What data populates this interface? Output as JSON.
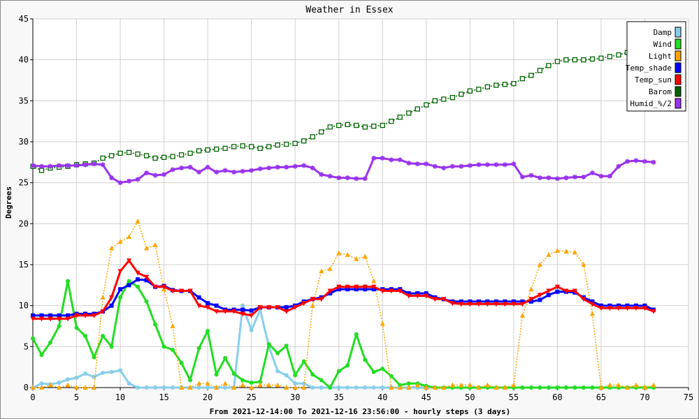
{
  "chart_data": {
    "type": "line",
    "title": "Weather in Essex",
    "xlabel": "From 2021-12-14:00 To 2021-12-16 23:56:00 - hourly steps (3 days)",
    "ylabel": "Degrees",
    "xlim": [
      0,
      75
    ],
    "ylim": [
      0,
      45
    ],
    "x_ticks": [
      0,
      5,
      10,
      15,
      20,
      25,
      30,
      35,
      40,
      45,
      50,
      55,
      60,
      65,
      70,
      75
    ],
    "y_ticks": [
      0,
      5,
      10,
      15,
      20,
      25,
      30,
      35,
      40,
      45
    ],
    "legend_position": "top-right",
    "series": [
      {
        "name": "Damp",
        "color": "#87ceeb",
        "marker": "circle",
        "dashed": false,
        "values": [
          0.0,
          0.5,
          0.4,
          0.6,
          1.0,
          1.2,
          1.7,
          1.3,
          1.8,
          1.9,
          2.1,
          0.5,
          0.0,
          0.0,
          0.0,
          0.0,
          0.0,
          0.0,
          0.0,
          0.0,
          0.0,
          0.0,
          0.0,
          0.0,
          10.0,
          7.0,
          9.5,
          5.0,
          2.0,
          1.5,
          0.5,
          0.5,
          0.0,
          0.0,
          0.0,
          0.0,
          0.0,
          0.0,
          0.0,
          0.0,
          0.0,
          0.0,
          0.0,
          0.0,
          0.0,
          0.0,
          0.0,
          0.0,
          0.0,
          0.0,
          0.0,
          0.0,
          0.0,
          0.0,
          0.0,
          0.0,
          0.0,
          0.0,
          0.0,
          0.0,
          0.0,
          0.0,
          0.0,
          0.0,
          0.0,
          0.0,
          0.0,
          0.0,
          0.0,
          0.0,
          0.0,
          0.0
        ]
      },
      {
        "name": "Wind",
        "color": "#22dd22",
        "marker": "circle",
        "dashed": false,
        "values": [
          6.0,
          4.0,
          5.5,
          7.5,
          13.0,
          7.3,
          6.3,
          3.7,
          6.3,
          5.0,
          11.0,
          13.0,
          12.3,
          10.5,
          7.7,
          5.0,
          4.6,
          3.0,
          0.9,
          4.8,
          6.9,
          1.6,
          3.6,
          1.7,
          0.9,
          0.6,
          0.7,
          5.3,
          4.2,
          5.1,
          1.5,
          3.2,
          1.6,
          0.9,
          0.0,
          2.0,
          2.7,
          6.5,
          3.4,
          1.9,
          2.3,
          1.4,
          0.3,
          0.5,
          0.5,
          0.2,
          0.0,
          0.0,
          0.0,
          0.0,
          0.0,
          0.0,
          0.0,
          0.0,
          0.0,
          0.0,
          0.0,
          0.0,
          0.0,
          0.0,
          0.0,
          0.0,
          0.0,
          0.0,
          0.0,
          0.0,
          0.0,
          0.0,
          0.0,
          0.0,
          0.0,
          0.0
        ]
      },
      {
        "name": "Light",
        "color": "#ffa500",
        "marker": "triangle",
        "dashed": true,
        "values": [
          0.0,
          0.0,
          0.3,
          0.0,
          0.3,
          0.0,
          0.0,
          0.0,
          11.0,
          17.0,
          17.8,
          18.4,
          20.3,
          17.0,
          17.4,
          12.0,
          7.5,
          0.0,
          0.0,
          0.5,
          0.5,
          0.0,
          0.5,
          0.0,
          0.3,
          0.0,
          0.3,
          0.3,
          0.3,
          0.0,
          0.0,
          0.0,
          10.0,
          14.2,
          14.5,
          16.4,
          16.2,
          15.7,
          16.0,
          13.0,
          7.8,
          0.0,
          0.0,
          0.0,
          0.3,
          0.0,
          0.0,
          0.0,
          0.3,
          0.3,
          0.3,
          0.0,
          0.3,
          0.0,
          0.0,
          0.3,
          8.8,
          12.0,
          15.0,
          16.2,
          16.7,
          16.6,
          16.5,
          15.0,
          9.0,
          0.0,
          0.3,
          0.3,
          0.0,
          0.3,
          0.0,
          0.3
        ]
      },
      {
        "name": "Temp_shade",
        "color": "#0000ff",
        "marker": "square",
        "dashed": false,
        "values": [
          8.8,
          8.8,
          8.8,
          8.8,
          8.8,
          9.0,
          9.0,
          9.0,
          9.3,
          10.0,
          12.0,
          12.5,
          13.2,
          13.1,
          12.3,
          12.4,
          11.9,
          11.8,
          11.8,
          11.0,
          10.3,
          10.0,
          9.5,
          9.5,
          9.5,
          9.4,
          9.8,
          9.8,
          9.8,
          9.8,
          10.0,
          10.5,
          10.8,
          11.0,
          11.5,
          12.0,
          12.0,
          12.0,
          12.0,
          12.0,
          12.0,
          12.0,
          12.0,
          11.5,
          11.5,
          11.5,
          11.0,
          10.8,
          10.5,
          10.5,
          10.5,
          10.5,
          10.5,
          10.5,
          10.5,
          10.5,
          10.5,
          10.5,
          10.7,
          11.3,
          11.7,
          11.7,
          11.6,
          11.0,
          10.5,
          10.0,
          10.0,
          10.0,
          10.0,
          10.0,
          10.0,
          9.5
        ]
      },
      {
        "name": "Temp_sun",
        "color": "#ff0000",
        "marker": "triangle-down",
        "dashed": false,
        "values": [
          8.4,
          8.4,
          8.4,
          8.4,
          8.4,
          8.8,
          8.8,
          8.8,
          9.3,
          11.0,
          14.2,
          15.5,
          14.0,
          13.5,
          12.3,
          12.3,
          11.8,
          11.8,
          11.8,
          10.0,
          9.8,
          9.3,
          9.3,
          9.3,
          9.0,
          8.8,
          9.8,
          9.8,
          9.8,
          9.3,
          9.8,
          10.3,
          10.8,
          10.8,
          11.8,
          12.3,
          12.3,
          12.3,
          12.3,
          12.3,
          11.8,
          11.8,
          11.8,
          11.2,
          11.2,
          11.2,
          10.8,
          10.8,
          10.3,
          10.2,
          10.2,
          10.2,
          10.2,
          10.2,
          10.2,
          10.2,
          10.2,
          10.8,
          11.3,
          11.8,
          12.3,
          11.8,
          11.8,
          10.8,
          10.2,
          9.7,
          9.7,
          9.7,
          9.7,
          9.7,
          9.7,
          9.3
        ]
      },
      {
        "name": "Barom",
        "color": "#006400",
        "marker": "square-open",
        "dashed": true,
        "values": [
          27.0,
          26.5,
          26.8,
          26.9,
          27.0,
          27.2,
          27.3,
          27.4,
          28.0,
          28.3,
          28.6,
          28.7,
          28.5,
          28.3,
          28.0,
          28.1,
          28.2,
          28.4,
          28.6,
          28.9,
          29.0,
          29.1,
          29.2,
          29.4,
          29.5,
          29.4,
          29.2,
          29.4,
          29.6,
          29.7,
          29.8,
          30.1,
          30.6,
          31.2,
          31.8,
          32.0,
          32.1,
          32.0,
          31.8,
          31.9,
          32.0,
          32.5,
          33.0,
          33.5,
          34.0,
          34.5,
          35.0,
          35.2,
          35.4,
          35.8,
          36.2,
          36.4,
          36.7,
          36.9,
          37.0,
          37.1,
          37.7,
          38.1,
          38.7,
          39.3,
          39.8,
          40.0,
          40.0,
          40.0,
          40.1,
          40.2,
          40.4,
          40.6,
          40.9,
          41.2,
          41.6,
          41.9
        ]
      },
      {
        "name": "Humid_%/2",
        "color": "#9933ee",
        "marker": "star",
        "dashed": false,
        "values": [
          27.1,
          27.0,
          27.0,
          27.1,
          27.1,
          27.1,
          27.2,
          27.3,
          27.2,
          25.6,
          25.0,
          25.2,
          25.4,
          26.2,
          25.9,
          26.0,
          26.6,
          26.8,
          26.9,
          26.3,
          26.9,
          26.3,
          26.5,
          26.3,
          26.4,
          26.5,
          26.7,
          26.8,
          26.9,
          26.9,
          27.0,
          27.1,
          26.8,
          26.0,
          25.8,
          25.6,
          25.6,
          25.5,
          25.5,
          28.0,
          28.0,
          27.8,
          27.8,
          27.4,
          27.3,
          27.3,
          27.0,
          26.8,
          27.0,
          27.0,
          27.1,
          27.2,
          27.2,
          27.2,
          27.2,
          27.3,
          25.7,
          25.9,
          25.6,
          25.6,
          25.5,
          25.6,
          25.7,
          25.7,
          26.2,
          25.8,
          25.8,
          27.0,
          27.6,
          27.7,
          27.6,
          27.5
        ]
      }
    ]
  }
}
